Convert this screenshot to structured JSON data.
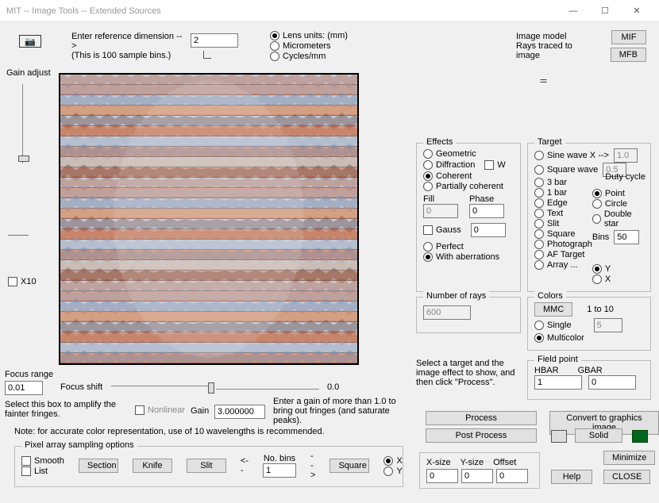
{
  "window": {
    "title": "MIT -- Image Tools -- Extended Sources",
    "min": "—",
    "max": "☐",
    "close": "✕"
  },
  "topbar": {
    "ref_label1": "Enter reference dimension -->",
    "ref_label2": "(This is 100 sample bins.)",
    "ref_value": "2",
    "units": {
      "lens": "Lens units: (mm)",
      "micrometers": "Micrometers",
      "cyclesmm": "Cycles/mm"
    },
    "image_model": "Image model",
    "rays_traced": "Rays traced to image",
    "mif": "MIF",
    "mfb": "MFB"
  },
  "left": {
    "gain_adjust": "Gain adjust",
    "x10": "X10",
    "focus_range_lbl": "Focus range",
    "focus_range_val": "0.01",
    "focus_shift": "Focus shift",
    "focus_shift_val": "0.0",
    "amplify_lbl": "Select this box to amplify the fainter fringes.",
    "nonlinear": "Nonlinear",
    "gain_lbl": "Gain",
    "gain_val": "3.000000",
    "gain_hint": "Enter a gain of more than 1.0 to bring out fringes (and saturate peaks).",
    "note": "Note: for accurate color representation, use of 10 wavelengths is recommended."
  },
  "pixarr": {
    "legend": "Pixel array sampling options",
    "smooth": "Smooth",
    "list": "List",
    "section": "Section",
    "knife": "Knife",
    "slit": "Slit",
    "nobins": "No. bins",
    "nobins_val": "1",
    "square": "Square",
    "x": "X",
    "y": "Y",
    "arrL": "<--",
    "arrR": "-->"
  },
  "effects": {
    "legend": "Effects",
    "geometric": "Geometric",
    "diffraction": "Diffraction",
    "w": "W",
    "coherent": "Coherent",
    "partial": "Partially coherent",
    "fill": "Fill",
    "fill_val": "0",
    "phase": "Phase",
    "phase_val": "0",
    "gauss": "Gauss",
    "gauss_val": "0",
    "perfect": "Perfect",
    "withab": "With aberrations"
  },
  "numrays": {
    "legend": "Number of rays",
    "val": "600"
  },
  "selhint": "Select a target and the image effect to show, and then click \"Process\".",
  "target": {
    "legend": "Target",
    "sinewave": "Sine wave X -->",
    "sinewave_val": "1.0",
    "squarewave": "Square wave",
    "squarewave_val": "0.5",
    "duty": "Duty cycle",
    "bar3": "3 bar",
    "bar1": "1 bar",
    "edge": "Edge",
    "text": "Text",
    "slit": "Slit",
    "square": "Square",
    "photograph": "Photograph",
    "aftarget": "AF Target",
    "array": "Array ...",
    "point": "Point",
    "circle": "Circle",
    "doublestar": "Double star",
    "bins": "Bins",
    "bins_val": "50",
    "y": "Y",
    "x": "X"
  },
  "colors": {
    "legend": "Colors",
    "mmc": "MMC",
    "oneToTen": "1 to 10",
    "single": "Single",
    "single_val": "5",
    "multicolor": "Multicolor"
  },
  "fieldpt": {
    "legend": "Field point",
    "hbar": "HBAR",
    "gbar": "GBAR",
    "hbar_val": "1",
    "gbar_val": "0"
  },
  "bottom": {
    "process": "Process",
    "postprocess": "Post Process",
    "convert": "Convert to graphics image",
    "solid": "Solid",
    "xsize": "X-size",
    "ysize": "Y-size",
    "offset": "Offset",
    "xsize_val": "0",
    "ysize_val": "0",
    "offset_val": "0",
    "minimize": "Minimize",
    "help": "Help",
    "close": "CLOSE"
  },
  "canvas": {
    "bg": "#f6efe6",
    "c1": "#b55a3a",
    "c2": "#9aa9c7",
    "c3": "#6b7fa3",
    "c4": "#d9a77a",
    "dark": "#533",
    "rows": 28
  }
}
